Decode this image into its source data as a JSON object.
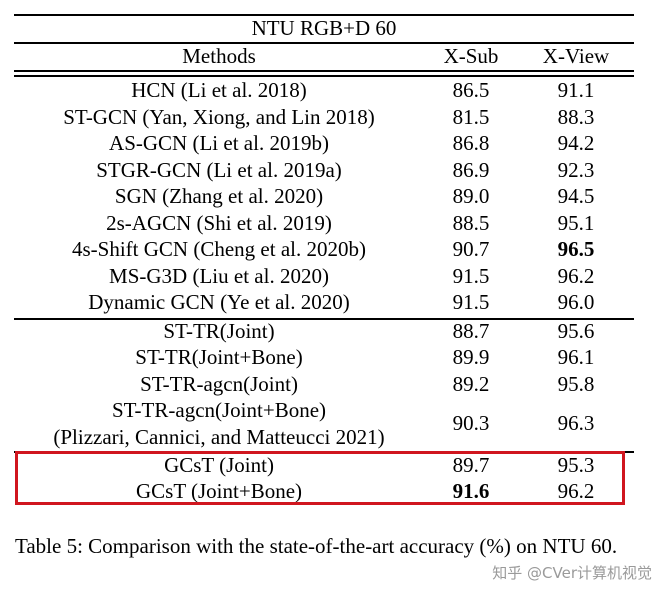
{
  "table": {
    "dataset_title": "NTU RGB+D 60",
    "headers": {
      "method": "Methods",
      "xsub": "X-Sub",
      "xview": "X-View"
    },
    "group1": [
      {
        "method": "HCN (Li et al. 2018)",
        "xsub": "86.5",
        "xview": "91.1"
      },
      {
        "method": "ST-GCN (Yan, Xiong, and Lin 2018)",
        "xsub": "81.5",
        "xview": "88.3"
      },
      {
        "method": "AS-GCN (Li et al. 2019b)",
        "xsub": "86.8",
        "xview": "94.2"
      },
      {
        "method": "STGR-GCN (Li et al. 2019a)",
        "xsub": "86.9",
        "xview": "92.3"
      },
      {
        "method": "SGN (Zhang et al. 2020)",
        "xsub": "89.0",
        "xview": "94.5"
      },
      {
        "method": "2s-AGCN (Shi et al. 2019)",
        "xsub": "88.5",
        "xview": "95.1"
      },
      {
        "method": "4s-Shift GCN (Cheng et al. 2020b)",
        "xsub": "90.7",
        "xview": "96.5"
      },
      {
        "method": "MS-G3D (Liu et al. 2020)",
        "xsub": "91.5",
        "xview": "96.2"
      },
      {
        "method": "Dynamic GCN (Ye et al. 2020)",
        "xsub": "91.5",
        "xview": "96.0"
      }
    ],
    "group2": [
      {
        "method": "ST-TR(Joint)",
        "xsub": "88.7",
        "xview": "95.6"
      },
      {
        "method": "ST-TR(Joint+Bone)",
        "xsub": "89.9",
        "xview": "96.1"
      },
      {
        "method": "ST-TR-agcn(Joint)",
        "xsub": "89.2",
        "xview": "95.8"
      },
      {
        "method": "ST-TR-agcn(Joint+Bone)",
        "method_line2": "(Plizzari, Cannici, and Matteucci 2021)",
        "xsub": "90.3",
        "xview": "96.3"
      }
    ],
    "group3": [
      {
        "method": "GCsT (Joint)",
        "xsub": "89.7",
        "xview": "95.3"
      },
      {
        "method": "GCsT (Joint+Bone)",
        "xsub": "91.6",
        "xview": "96.2"
      }
    ],
    "highlight_color": "#d0161f"
  },
  "caption": "Table 5: Comparison with the state-of-the-art accuracy (%) on NTU 60.",
  "watermark": "知乎 @CVer计算机视觉"
}
